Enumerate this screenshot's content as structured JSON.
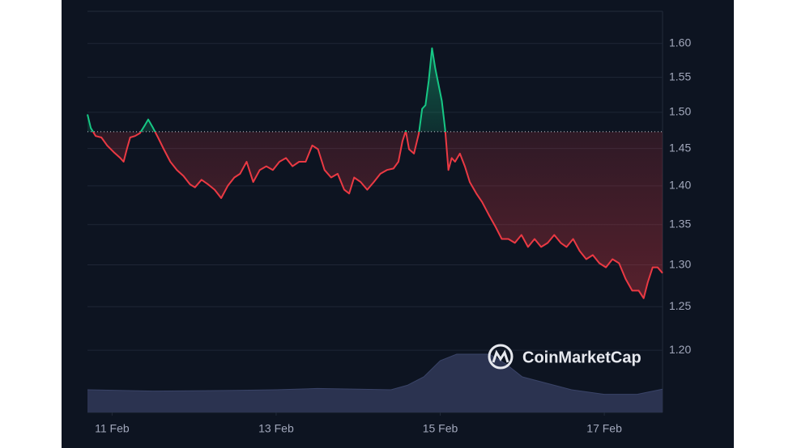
{
  "chart_data": {
    "type": "line",
    "log_scale": true,
    "grid": true,
    "watermark": "CoinMarketCap",
    "baseline": 1.473,
    "color_above": "#16c784",
    "color_below": "#ea3943",
    "xlim": [
      10.7,
      17.71
    ],
    "xticks": [
      {
        "value": 11,
        "label": "11 Feb"
      },
      {
        "value": 13,
        "label": "13 Feb"
      },
      {
        "value": 15,
        "label": "15 Feb"
      },
      {
        "value": 17,
        "label": "17 Feb"
      }
    ],
    "ylim": [
      1.132,
      1.649
    ],
    "yticks": [
      {
        "value": 1.2,
        "label": "1.20"
      },
      1.25,
      {
        "value": 1.3,
        "label": "1.30"
      },
      1.35,
      {
        "value": 1.4,
        "label": "1.40"
      },
      1.45,
      {
        "value": 1.5,
        "label": "1.50"
      },
      1.55,
      {
        "value": 1.6,
        "label": "1.60"
      }
    ],
    "x": [
      10.7,
      10.74,
      10.8,
      10.87,
      10.94,
      11.02,
      11.1,
      11.14,
      11.18,
      11.22,
      11.28,
      11.34,
      11.4,
      11.44,
      11.5,
      11.56,
      11.63,
      11.71,
      11.79,
      11.87,
      11.95,
      12.01,
      12.09,
      12.17,
      12.25,
      12.33,
      12.41,
      12.49,
      12.56,
      12.64,
      12.72,
      12.8,
      12.88,
      12.96,
      13.04,
      13.12,
      13.2,
      13.28,
      13.36,
      13.44,
      13.51,
      13.59,
      13.67,
      13.75,
      13.83,
      13.89,
      13.95,
      14.03,
      14.11,
      14.19,
      14.27,
      14.35,
      14.43,
      14.49,
      14.54,
      14.58,
      14.62,
      14.68,
      14.74,
      14.78,
      14.82,
      14.86,
      14.9,
      14.94,
      14.98,
      15.02,
      15.06,
      15.1,
      15.14,
      15.18,
      15.24,
      15.3,
      15.36,
      15.44,
      15.51,
      15.59,
      15.67,
      15.75,
      15.83,
      15.91,
      15.99,
      16.07,
      16.15,
      16.23,
      16.31,
      16.39,
      16.47,
      16.54,
      16.62,
      16.7,
      16.78,
      16.86,
      16.94,
      17.02,
      17.1,
      17.18,
      17.26,
      17.34,
      17.42,
      17.48,
      17.53,
      17.59,
      17.65,
      17.71
    ],
    "values": [
      1.497,
      1.478,
      1.467,
      1.465,
      1.454,
      1.445,
      1.437,
      1.432,
      1.449,
      1.465,
      1.467,
      1.471,
      1.482,
      1.49,
      1.478,
      1.465,
      1.449,
      1.432,
      1.421,
      1.413,
      1.402,
      1.398,
      1.408,
      1.402,
      1.395,
      1.384,
      1.4,
      1.411,
      1.416,
      1.432,
      1.405,
      1.421,
      1.426,
      1.421,
      1.432,
      1.437,
      1.426,
      1.432,
      1.432,
      1.454,
      1.449,
      1.421,
      1.411,
      1.416,
      1.395,
      1.39,
      1.411,
      1.405,
      1.395,
      1.405,
      1.416,
      1.421,
      1.423,
      1.432,
      1.46,
      1.474,
      1.449,
      1.443,
      1.471,
      1.505,
      1.51,
      1.545,
      1.593,
      1.563,
      1.539,
      1.516,
      1.476,
      1.421,
      1.437,
      1.432,
      1.443,
      1.426,
      1.405,
      1.39,
      1.379,
      1.363,
      1.348,
      1.332,
      1.332,
      1.327,
      1.337,
      1.322,
      1.332,
      1.322,
      1.327,
      1.337,
      1.327,
      1.322,
      1.332,
      1.317,
      1.307,
      1.312,
      1.302,
      1.297,
      1.307,
      1.302,
      1.283,
      1.269,
      1.269,
      1.26,
      1.279,
      1.297,
      1.297,
      1.29
    ],
    "volume": {
      "color": "#2b3350",
      "ylim": [
        0,
        100
      ],
      "x": [
        10.7,
        11.5,
        12.5,
        13.0,
        13.5,
        14.0,
        14.4,
        14.6,
        14.8,
        15.0,
        15.2,
        15.6,
        15.8,
        16.0,
        16.3,
        16.6,
        17.0,
        17.4,
        17.71
      ],
      "values": [
        35,
        33,
        34,
        35,
        37,
        36,
        35,
        42,
        55,
        80,
        90,
        90,
        75,
        55,
        45,
        35,
        28,
        28,
        36
      ]
    }
  }
}
